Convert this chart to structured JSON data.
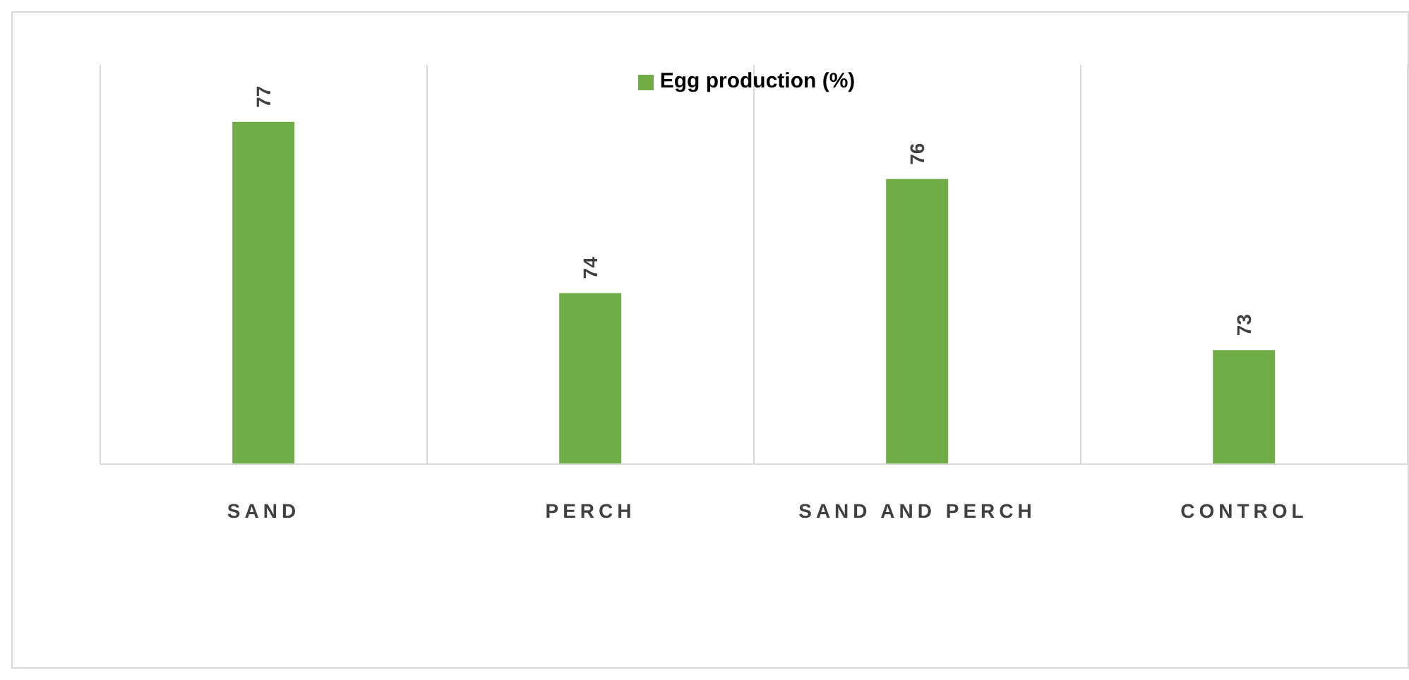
{
  "chart_data": {
    "type": "bar",
    "categories": [
      "SAND",
      "PERCH",
      "SAND AND PERCH",
      "CONTROL"
    ],
    "series": [
      {
        "name": "Egg production (%)",
        "color": "#70ad47",
        "values": [
          77,
          74,
          76,
          73
        ]
      }
    ],
    "ylim": [
      71,
      78
    ],
    "data_labels": true,
    "tick_labels": "x",
    "grid": "x",
    "legend": "top"
  }
}
